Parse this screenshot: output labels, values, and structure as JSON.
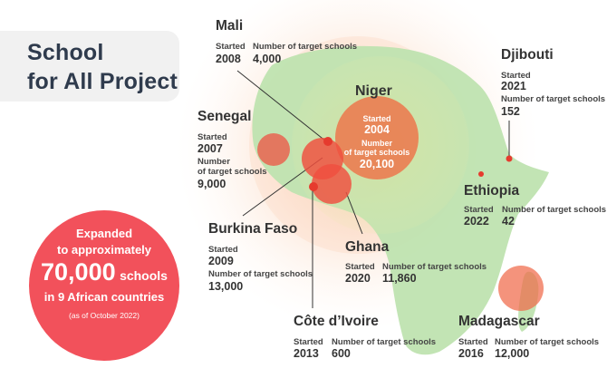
{
  "title": {
    "line1": "School",
    "line2": "for All Project"
  },
  "summary": {
    "line1": "Expanded",
    "line2": "to approximately",
    "count": "70,000",
    "count_unit": "schools",
    "line4": "in 9 African countries",
    "note": "(as of October 2022)"
  },
  "labels": {
    "started": "Started",
    "targets": "Number of target schools",
    "number": "Number",
    "of_target_schools": "of target schools"
  },
  "countries": {
    "mali": {
      "name": "Mali",
      "started": "2008",
      "schools": "4,000"
    },
    "djibouti": {
      "name": "Djibouti",
      "started": "2021",
      "schools": "152"
    },
    "niger": {
      "name": "Niger",
      "started": "2004",
      "schools": "20,100"
    },
    "senegal": {
      "name": "Senegal",
      "started": "2007",
      "schools": "9,000"
    },
    "ethiopia": {
      "name": "Ethiopia",
      "started": "2022",
      "schools": "42"
    },
    "burkina": {
      "name": "Burkina Faso",
      "started": "2009",
      "schools": "13,000"
    },
    "ghana": {
      "name": "Ghana",
      "started": "2020",
      "schools": "11,860"
    },
    "cote": {
      "name": "Côte d’Ivoire",
      "started": "2013",
      "schools": "600"
    },
    "madagascar": {
      "name": "Madagascar",
      "started": "2016",
      "schools": "12,000"
    }
  },
  "colors": {
    "africa": "#bfe3b0",
    "bubble": "#f04e3e",
    "niger_bubble": "#ec7a4f",
    "badge": "#f2515b",
    "title_bg": "#f1f1f1",
    "title_text": "#2f3b4d"
  }
}
